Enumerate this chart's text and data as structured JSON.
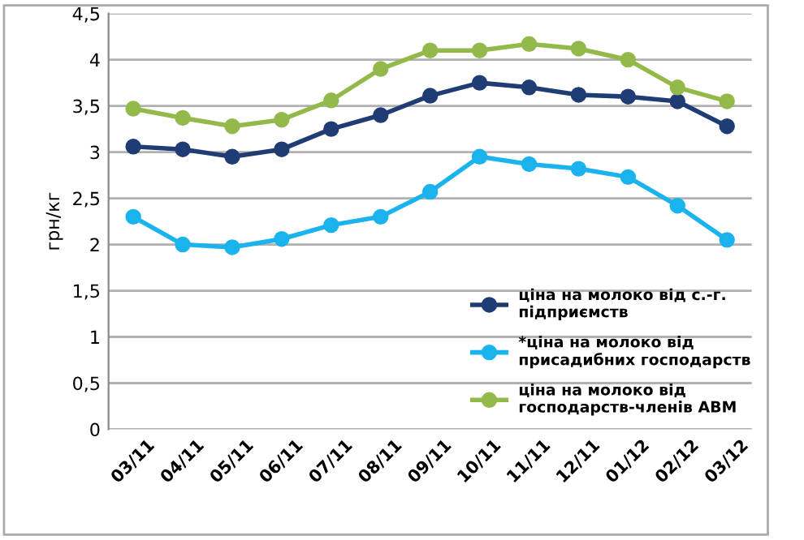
{
  "chart_data": {
    "type": "line",
    "ylabel": "грн/кг",
    "categories": [
      "03/11",
      "04/11",
      "05/11",
      "06/11",
      "07/11",
      "08/11",
      "09/11",
      "10/11",
      "11/11",
      "12/11",
      "01/12",
      "02/12",
      "03/12"
    ],
    "series": [
      {
        "name": "ціна на молоко від с.-г. підприємств",
        "color": "#1f3d74",
        "values": [
          3.06,
          3.03,
          2.95,
          3.03,
          3.25,
          3.4,
          3.61,
          3.75,
          3.7,
          3.62,
          3.6,
          3.55,
          3.28
        ]
      },
      {
        "name": "*ціна на молоко від присадибних господарств",
        "color": "#1ab3ee",
        "values": [
          2.3,
          2.0,
          1.97,
          2.06,
          2.21,
          2.3,
          2.57,
          2.95,
          2.87,
          2.82,
          2.73,
          2.42,
          2.05
        ]
      },
      {
        "name": "ціна на молоко від господарств-членів АВМ",
        "color": "#92b94a",
        "values": [
          3.47,
          3.37,
          3.28,
          3.35,
          3.56,
          3.9,
          4.1,
          4.1,
          4.17,
          4.12,
          4.0,
          3.7,
          3.55
        ]
      }
    ],
    "ylim": [
      0,
      4.5
    ],
    "yticks": [
      0,
      {
        "value": 0.5,
        "label": "0,5"
      },
      1,
      {
        "value": 1.5,
        "label": "1,5"
      },
      2,
      {
        "value": 2.5,
        "label": "2,5"
      },
      3,
      {
        "value": 3.5,
        "label": "3,5"
      },
      4,
      {
        "value": 4.5,
        "label": "4,5"
      }
    ],
    "grid": "y",
    "legend": "bottom right",
    "marker": "circle",
    "line_style": "solid"
  }
}
